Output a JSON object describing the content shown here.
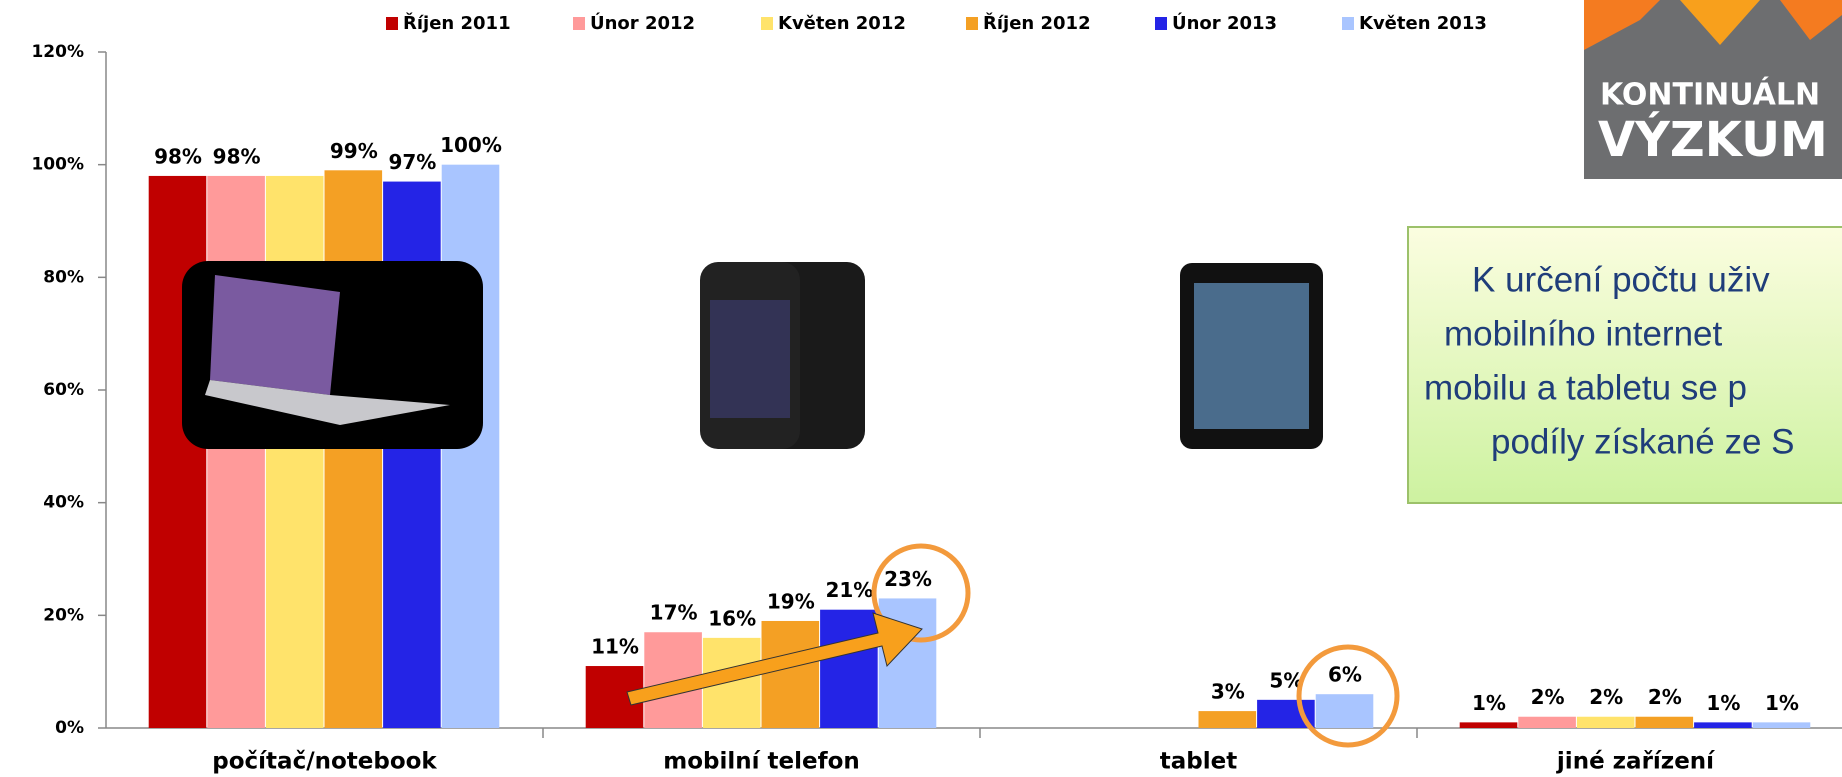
{
  "chart_data": {
    "type": "bar",
    "categories": [
      "počítač/notebook",
      "mobilní telefon",
      "tablet",
      "jiné zařízení"
    ],
    "series": [
      {
        "name": "Říjen 2011",
        "color": "#c00000",
        "values": [
          98,
          11,
          null,
          1
        ],
        "value_labels": [
          "98%",
          "11%",
          null,
          "1%"
        ]
      },
      {
        "name": "Únor 2012",
        "color": "#ff9a9a",
        "values": [
          98,
          17,
          null,
          2
        ],
        "value_labels": [
          "98%",
          "17%",
          null,
          "2%"
        ]
      },
      {
        "name": "Květen 2012",
        "color": "#ffe36b",
        "values": [
          98,
          16,
          null,
          2
        ],
        "value_labels": [
          null,
          "16%",
          null,
          "2%"
        ]
      },
      {
        "name": "Říjen 2012",
        "color": "#f4a024",
        "values": [
          99,
          19,
          3,
          2
        ],
        "value_labels": [
          "99%",
          "19%",
          "3%",
          "2%"
        ]
      },
      {
        "name": "Únor 2013",
        "color": "#2424e6",
        "values": [
          97,
          21,
          5,
          1
        ],
        "value_labels": [
          "97%",
          "21%",
          "5%",
          "1%"
        ]
      },
      {
        "name": "Květen 2013",
        "color": "#a9c5ff",
        "values": [
          100,
          23,
          6,
          1
        ],
        "value_labels": [
          "100%",
          "23%",
          "6%",
          "1%"
        ]
      }
    ],
    "ylim": [
      0,
      120
    ],
    "yticks": [
      {
        "value": 0,
        "label": "0%"
      },
      {
        "value": 20,
        "label": "20%"
      },
      {
        "value": 40,
        "label": "40%"
      },
      {
        "value": 60,
        "label": "60%"
      },
      {
        "value": 80,
        "label": "80%"
      },
      {
        "value": 100,
        "label": "100%"
      },
      {
        "value": 120,
        "label": "120%"
      }
    ],
    "legend": "top"
  },
  "logo": {
    "line1": "KONTINUÁLN",
    "line2": "VÝZKUM"
  },
  "callout": {
    "lines": [
      "K určení počtu uživ",
      "mobilního internet",
      "mobilu a tabletu se p",
      "podíly získané ze S"
    ]
  }
}
